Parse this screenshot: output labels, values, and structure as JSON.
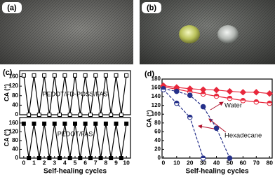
{
  "photos": [
    {
      "label": "(a)"
    },
    {
      "label": "(b)"
    }
  ],
  "chart_data": [
    {
      "type": "line",
      "label": "(c)",
      "annotation": "PEDOT/FD-POSS/FAS",
      "ylabel": "CA (°)",
      "x": [
        0,
        0.5,
        1,
        1.5,
        2,
        2.5,
        3,
        3.5,
        4,
        4.5,
        5,
        5.5,
        6,
        6.5,
        7,
        7.5,
        8,
        8.5,
        9,
        9.5,
        10
      ],
      "series": [
        {
          "color": "#000000",
          "marker": "square-open",
          "values": [
            165,
            0,
            165,
            0,
            165,
            0,
            165,
            0,
            165,
            0,
            165,
            0,
            165,
            0,
            165,
            0,
            165,
            0,
            165,
            0,
            165
          ]
        }
      ],
      "xlim": [
        -0.4,
        10.4
      ],
      "ylim": [
        0,
        185
      ],
      "yticks": [
        0,
        40,
        80,
        120,
        160
      ]
    },
    {
      "type": "line",
      "label": "",
      "annotation": "PEDOT/FAS",
      "ylabel": "CA (°)",
      "xlabel": "Self-healing cycles",
      "x": [
        0,
        0.5,
        1,
        1.5,
        2,
        2.5,
        3,
        3.5,
        4,
        4.5,
        5,
        5.5,
        6,
        6.5,
        7,
        7.5,
        8,
        8.5,
        9,
        9.5,
        10
      ],
      "series": [
        {
          "color": "#000000",
          "marker": "square",
          "values": [
            157,
            0,
            157,
            0,
            157,
            0,
            157,
            0,
            157,
            0,
            157,
            0,
            157,
            0,
            157,
            0,
            157,
            0,
            157,
            0,
            157
          ]
        }
      ],
      "xlim": [
        -0.4,
        10.4
      ],
      "xticks": [
        0,
        1,
        2,
        3,
        4,
        5,
        6,
        7,
        8,
        9,
        10
      ],
      "ylim": [
        0,
        185
      ],
      "yticks": [
        0,
        40,
        80,
        120,
        160
      ]
    },
    {
      "type": "line",
      "label": "(d)",
      "ylabel": "CA (°)",
      "xlabel": "Self-healing cycles",
      "annotations": [
        "Water",
        "Hexadecane"
      ],
      "x": [
        0,
        10,
        20,
        30,
        40,
        50,
        60,
        70,
        80
      ],
      "series": [
        {
          "color": "#e8283c",
          "marker": "diamond",
          "values": [
            165,
            161,
            158,
            156,
            155,
            152,
            150,
            150,
            147
          ]
        },
        {
          "color": "#e8283c",
          "marker": "circle-half",
          "values": [
            162,
            157,
            151,
            146,
            141,
            136,
            131,
            128,
            125
          ]
        },
        {
          "color": "#25308a",
          "marker": "circle",
          "dash": true,
          "values": [
            158,
            152,
            143,
            117,
            68,
            0,
            null,
            null,
            null
          ]
        },
        {
          "color": "#25308a",
          "marker": "circle-half",
          "dash": true,
          "values": [
            156,
            125,
            93,
            0,
            null,
            null,
            null,
            null,
            null
          ]
        }
      ],
      "xlim": [
        -1,
        82
      ],
      "xticks": [
        0,
        10,
        20,
        30,
        40,
        50,
        60,
        70,
        80
      ],
      "ylim": [
        0,
        180
      ],
      "yticks": [
        0,
        20,
        40,
        60,
        80,
        100,
        120,
        140,
        160,
        180
      ]
    }
  ]
}
